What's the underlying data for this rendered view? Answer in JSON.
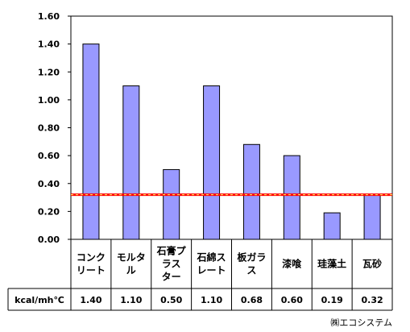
{
  "chart_data": {
    "type": "bar",
    "categories": [
      [
        "コンク",
        "リート"
      ],
      [
        "モルタ",
        "ル"
      ],
      [
        "石膏プ",
        "ラス",
        "ター"
      ],
      [
        "石綿ス",
        "レート"
      ],
      [
        "板ガラ",
        "ス"
      ],
      [
        "漆喰"
      ],
      [
        "珪藻土"
      ],
      [
        "瓦砂"
      ]
    ],
    "values": [
      1.4,
      1.1,
      0.5,
      1.1,
      0.68,
      0.6,
      0.19,
      0.32
    ],
    "value_labels": [
      "1.40",
      "1.10",
      "0.50",
      "1.10",
      "0.68",
      "0.60",
      "0.19",
      "0.32"
    ],
    "ylim": [
      0,
      1.6
    ],
    "yticks": [
      "0.00",
      "0.20",
      "0.40",
      "0.60",
      "0.80",
      "1.00",
      "1.20",
      "1.40",
      "1.60"
    ],
    "reference_line": 0.32,
    "unit_label": "kcal/mh℃",
    "colors": {
      "bar": "#9999ff",
      "reference_line": "#ff0000",
      "reference_dash": "#ffff66"
    }
  },
  "footer": {
    "credit": "㈱エコシステム"
  }
}
